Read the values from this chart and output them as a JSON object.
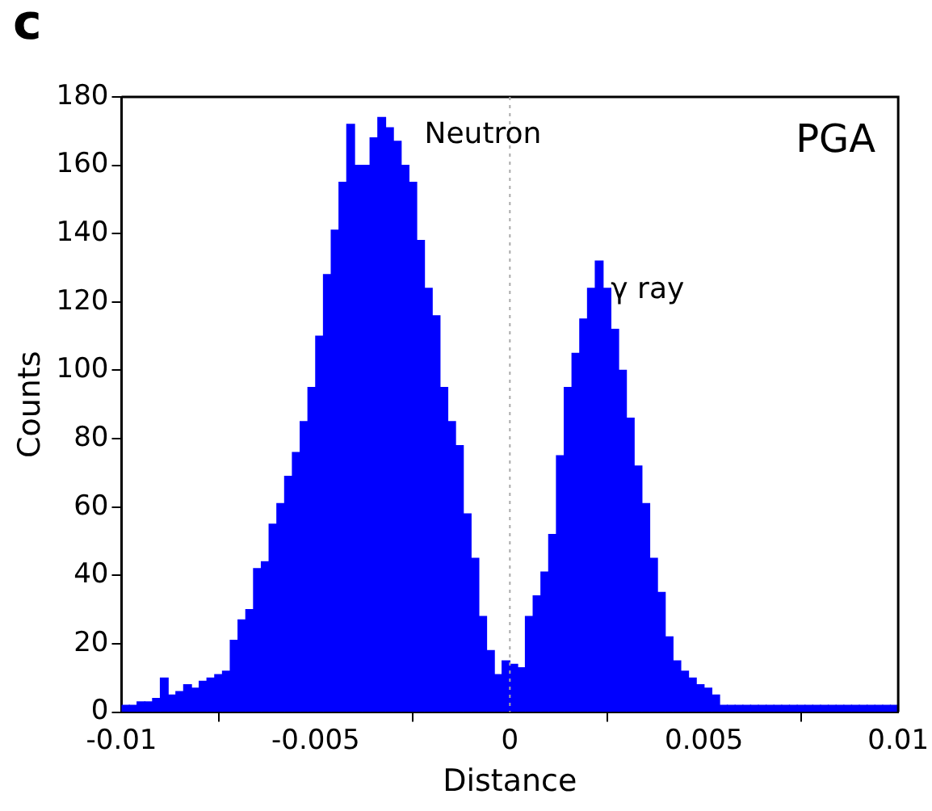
{
  "chart_data": {
    "type": "histogram",
    "xlabel": "Distance",
    "ylabel": "Counts",
    "color": "#0000ff",
    "bins": [
      -0.01,
      -0.0098,
      -0.0096,
      -0.0094,
      -0.0092,
      -0.009,
      -0.0088,
      -0.0086,
      -0.0084,
      -0.0082,
      -0.008,
      -0.0078,
      -0.0076,
      -0.0074,
      -0.0072,
      -0.007,
      -0.0068,
      -0.0066,
      -0.0064,
      -0.0062,
      -0.006,
      -0.0058,
      -0.0056,
      -0.0054,
      -0.0052,
      -0.005,
      -0.0048,
      -0.0046,
      -0.0044,
      -0.0042,
      -0.004,
      -0.0038,
      -0.0036,
      -0.0034,
      -0.0032,
      -0.003,
      -0.0028,
      -0.0026,
      -0.0024,
      -0.0022,
      -0.002,
      -0.0018,
      -0.0016,
      -0.0014,
      -0.0012,
      -0.001,
      -0.0008,
      -0.0006,
      -0.0004,
      -0.0002,
      0,
      0.0002,
      0.0004,
      0.0006,
      0.0008,
      0.001,
      0.0012,
      0.0014,
      0.0016,
      0.0018,
      0.002,
      0.0022,
      0.0024,
      0.0026,
      0.0028,
      0.003,
      0.0032,
      0.0034,
      0.0036,
      0.0038,
      0.004,
      0.0042,
      0.0044,
      0.0046,
      0.0048,
      0.005,
      0.0052,
      0.0054,
      0.0056,
      0.0058,
      0.006,
      0.0062,
      0.0064,
      0.0066,
      0.0068,
      0.007,
      0.0072,
      0.0074,
      0.0076,
      0.0078,
      0.008,
      0.0082,
      0.0084,
      0.0086,
      0.0088,
      0.009,
      0.0092,
      0.0094,
      0.0096,
      0.0098,
      0.01
    ],
    "values": [
      2,
      2,
      3,
      3,
      4,
      10,
      5,
      6,
      8,
      7,
      9,
      10,
      11,
      12,
      21,
      27,
      30,
      42,
      44,
      55,
      61,
      69,
      76,
      85,
      95,
      110,
      128,
      141,
      155,
      172,
      160,
      160,
      168,
      174,
      171,
      167,
      160,
      155,
      138,
      124,
      116,
      95,
      85,
      78,
      58,
      45,
      28,
      18,
      11,
      15,
      14,
      13,
      28,
      34,
      41,
      52,
      75,
      95,
      105,
      115,
      124,
      132,
      124,
      112,
      100,
      86,
      72,
      61,
      45,
      35,
      22,
      15,
      12,
      10,
      8,
      7,
      5,
      2,
      2,
      2,
      2,
      2,
      2,
      2,
      2,
      2,
      2,
      2,
      2,
      2,
      2,
      2,
      2,
      2,
      2,
      2,
      2,
      2,
      2,
      2
    ],
    "xlim": [
      -0.01,
      0.01
    ],
    "xticks": [
      -0.01,
      -0.005,
      0,
      0.005,
      0.01
    ],
    "ylim": [
      0,
      180
    ],
    "yticks": [
      0,
      20,
      40,
      60,
      80,
      100,
      120,
      140,
      160,
      180
    ],
    "grid": false,
    "legend": false,
    "ref_lines": [
      {
        "axis": "x",
        "value": 0,
        "color": "#aaaaaa",
        "line_style": "dotted"
      }
    ],
    "annotations": [
      "c",
      "PGA",
      "Neutron",
      "γ ray"
    ]
  }
}
